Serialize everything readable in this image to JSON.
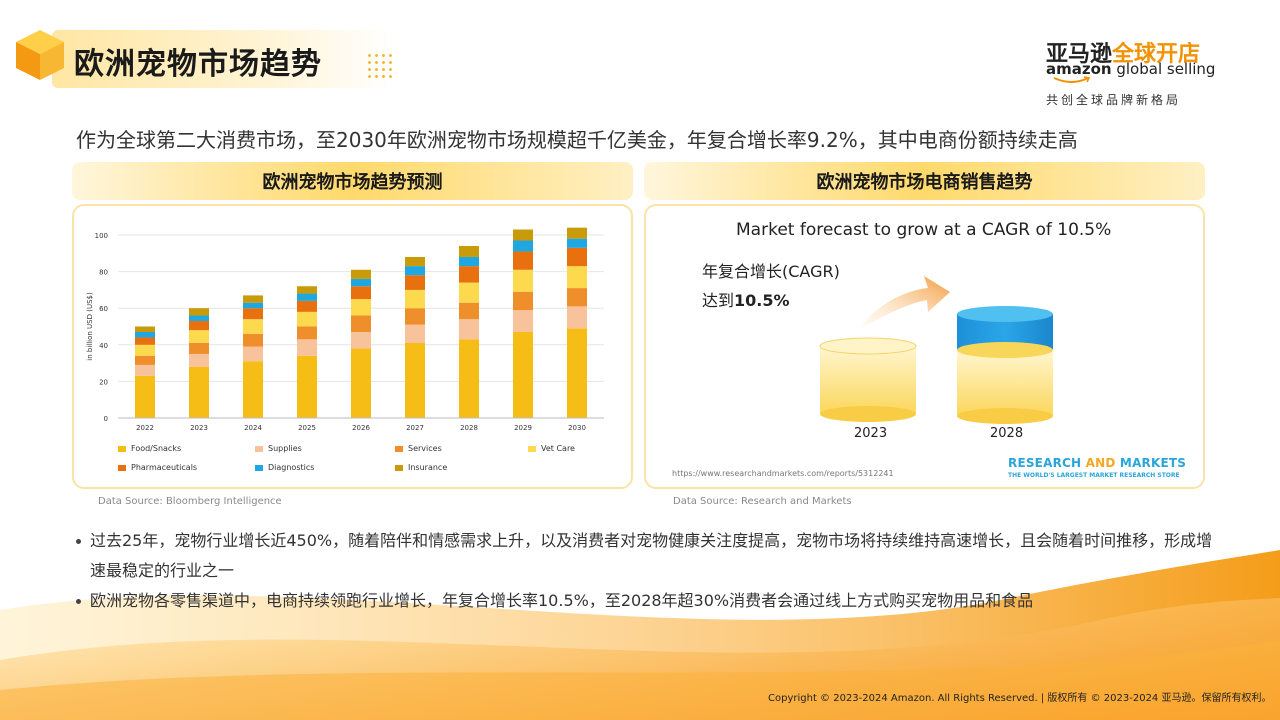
{
  "title": "欧洲宠物市场趋势",
  "logo": {
    "cn_dark": "亚马逊",
    "cn_orange": "全球开店",
    "en_bold": "amazon",
    "en_light": " global selling",
    "tagline": "共创全球品牌新格局"
  },
  "subtitle": "作为全球第二大消费市场，至2030年欧洲宠物市场规模超千亿美金，年复合增长率9.2%，其中电商份额持续走高",
  "left_panel": {
    "heading": "欧洲宠物市场趋势预测",
    "source": "Data Source: Bloomberg Intelligence"
  },
  "right_panel": {
    "heading": "欧洲宠物市场电商销售趋势",
    "chart_title": "Market forecast to grow at a CAGR of 10.5%",
    "cagr_label": "年复合增长(CAGR)",
    "cagr_prefix": "达到",
    "cagr_value": "10.5%",
    "year_start": "2023",
    "year_end": "2028",
    "url": "https://www.researchandmarkets.com/reports/5312241",
    "brand_research": "RESEARCH",
    "brand_and": " AND ",
    "brand_markets": "MARKETS",
    "brand_sub": "THE WORLD'S LARGEST MARKET RESEARCH STORE",
    "source": "Data Source: Research and Markets"
  },
  "bullets": [
    "过去25年，宠物行业增长近450%，随着陪伴和情感需求上升，以及消费者对宠物健康关注度提高，宠物市场将持续维持高速增长，且会随着时间推移，形成增速最稳定的行业之一",
    "欧洲宠物各零售渠道中，电商持续领跑行业增长，年复合增长率10.5%，至2028年超30%消费者会通过线上方式购买宠物用品和食品"
  ],
  "copyright": "Copyright © 2023-2024 Amazon. All Rights Reserved. | 版权所有 © 2023-2024 亚马逊。保留所有权利。",
  "colors": {
    "food": "#f7bd17",
    "supplies": "#f8c29a",
    "services": "#ef8f2b",
    "vet": "#fdd94e",
    "pharma": "#e8700f",
    "diag": "#1ea7e0",
    "insurance": "#c99a09"
  },
  "chart_data": {
    "type": "bar",
    "stacked": true,
    "ylabel": "in billion USD (US$)",
    "ylim": [
      0,
      100
    ],
    "yticks": [
      0,
      20,
      40,
      60,
      80,
      100
    ],
    "categories": [
      "2022",
      "2023",
      "2024",
      "2025",
      "2026",
      "2027",
      "2028",
      "2029",
      "2030"
    ],
    "series": [
      {
        "name": "Food/Snacks",
        "color": "#f7bd17",
        "values": [
          23,
          28,
          31,
          34,
          38,
          41,
          43,
          47,
          49
        ]
      },
      {
        "name": "Supplies",
        "color": "#f8c29a",
        "values": [
          6,
          7,
          8,
          9,
          9,
          10,
          11,
          12,
          12
        ]
      },
      {
        "name": "Services",
        "color": "#ef8f2b",
        "values": [
          5,
          6,
          7,
          7,
          9,
          9,
          9,
          10,
          10
        ]
      },
      {
        "name": "Vet Care",
        "color": "#fdd94e",
        "values": [
          6,
          7,
          8,
          8,
          9,
          10,
          11,
          12,
          12
        ]
      },
      {
        "name": "Pharmaceuticals",
        "color": "#e8700f",
        "values": [
          4,
          5,
          6,
          6,
          7,
          8,
          9,
          10,
          10
        ]
      },
      {
        "name": "Diagnostics",
        "color": "#1ea7e0",
        "values": [
          3,
          3,
          3,
          4,
          4,
          5,
          5,
          6,
          5
        ]
      },
      {
        "name": "Insurance",
        "color": "#c99a09",
        "values": [
          3,
          4,
          4,
          4,
          5,
          5,
          6,
          6,
          6
        ]
      }
    ]
  }
}
